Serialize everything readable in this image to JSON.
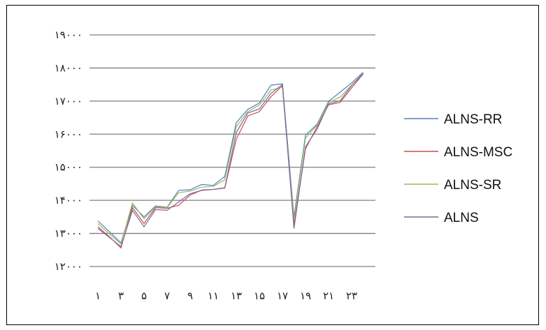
{
  "chart_data": {
    "type": "line",
    "x": [
      1,
      2,
      3,
      4,
      5,
      6,
      7,
      8,
      9,
      10,
      11,
      12,
      13,
      14,
      15,
      16,
      17,
      18,
      19,
      20,
      21,
      22,
      23,
      24
    ],
    "xticks": [
      1,
      3,
      5,
      7,
      9,
      11,
      13,
      15,
      17,
      19,
      21,
      23
    ],
    "xtick_labels": [
      "١",
      "٣",
      "۵",
      "٧",
      "٩",
      "١١",
      "١٣",
      "١۵",
      "١٧",
      "١٩",
      "٢١",
      "٢٣"
    ],
    "yticks": [
      12000,
      13000,
      14000,
      15000,
      16000,
      17000,
      18000,
      19000
    ],
    "ytick_labels": [
      "١٢٠٠٠",
      "١٣٠٠٠",
      "١۴٠٠٠",
      "١۵٠٠٠",
      "١۶٠٠٠",
      "١٧٠٠٠",
      "١٨٠٠٠",
      "١٩٠٠٠"
    ],
    "ylim": [
      12000,
      19000
    ],
    "grid": true,
    "legend_position": "right",
    "title": "",
    "xlabel": "",
    "ylabel": "",
    "series": [
      {
        "name": "ALNS-RR",
        "color": "#4f81bd",
        "values": [
          13380,
          13050,
          12720,
          13850,
          13500,
          13830,
          13790,
          14300,
          14320,
          14480,
          14450,
          14720,
          16350,
          16750,
          16940,
          17480,
          17520,
          13500,
          15970,
          16300,
          16990,
          17270,
          17550,
          17870
        ]
      },
      {
        "name": "ALNS-MSC",
        "color": "#c0504d",
        "values": [
          13200,
          12900,
          12560,
          13780,
          13300,
          13780,
          13760,
          13850,
          14160,
          14310,
          14330,
          14370,
          15850,
          16550,
          16680,
          17130,
          17470,
          13250,
          15560,
          16220,
          16890,
          16960,
          17400,
          17820
        ]
      },
      {
        "name": "ALNS-SR",
        "color": "#9bbb59",
        "values": [
          13300,
          12980,
          12680,
          13920,
          13440,
          13800,
          13780,
          14230,
          14280,
          14400,
          14420,
          14620,
          16230,
          16680,
          16880,
          17330,
          17420,
          13400,
          15880,
          16270,
          16960,
          17120,
          17480,
          17840
        ]
      },
      {
        "name": "ALNS",
        "color": "#8064a2",
        "values": [
          13150,
          12880,
          12600,
          13700,
          13200,
          13720,
          13700,
          13950,
          14200,
          14300,
          14330,
          14380,
          16050,
          16640,
          16760,
          17230,
          17500,
          13150,
          15620,
          16150,
          16920,
          17010,
          17470,
          17830
        ]
      }
    ]
  }
}
